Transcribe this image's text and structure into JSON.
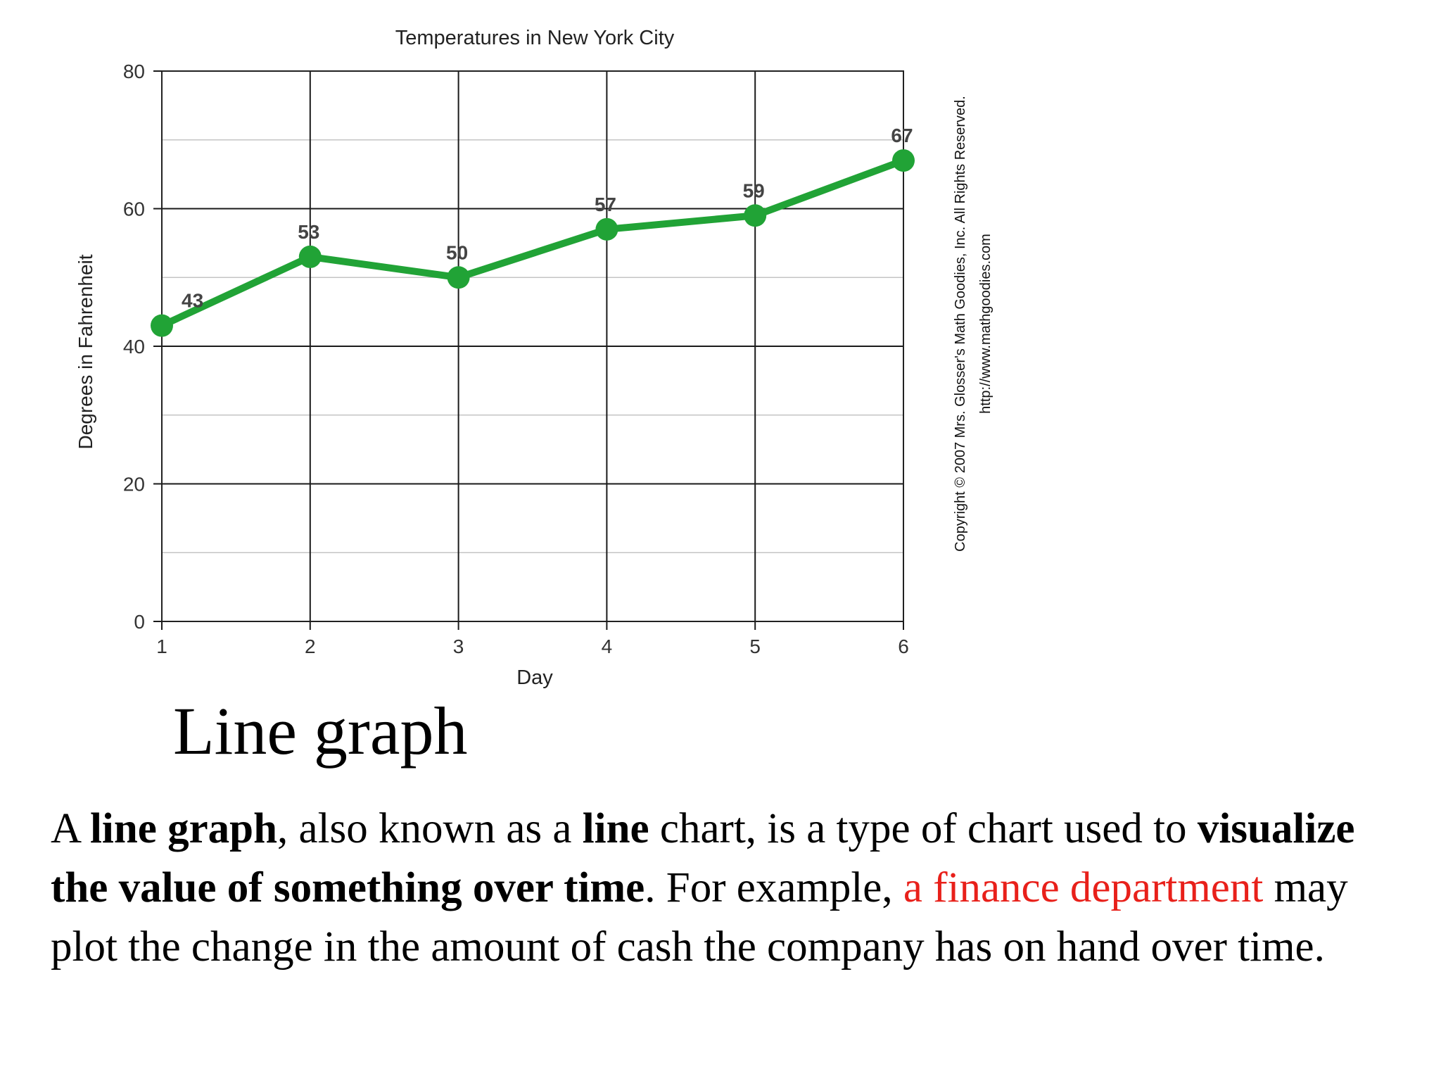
{
  "chart_data": {
    "type": "line",
    "title": "Temperatures in New York City",
    "xlabel": "Day",
    "ylabel": "Degrees in Fahrenheit",
    "x": [
      1,
      2,
      3,
      4,
      5,
      6
    ],
    "yticks": [
      0,
      20,
      40,
      60,
      80
    ],
    "ylim": [
      0,
      80
    ],
    "xlim": [
      1,
      6
    ],
    "grid": true,
    "legend": "none",
    "line_color": "#21a336",
    "series": [
      {
        "values": [
          43,
          53,
          50,
          57,
          59,
          67
        ]
      }
    ]
  },
  "copyright": {
    "line1": "Copyright © 2007 Mrs. Glosser's Math Goodies, Inc. All Rights Reserved.",
    "line2": "http://www.mathgoodies.com"
  },
  "slide": {
    "heading": "Line graph",
    "body": {
      "p1": "A ",
      "b1": "line graph",
      "p2": ", also known as a ",
      "b2": "line",
      "p3": " chart, is a type of chart used to ",
      "b3": "visualize the value of something over time",
      "p4": ". For example, ",
      "red": "a finance department",
      "p5": " may plot the change in the amount of cash the company has on hand over time."
    }
  }
}
